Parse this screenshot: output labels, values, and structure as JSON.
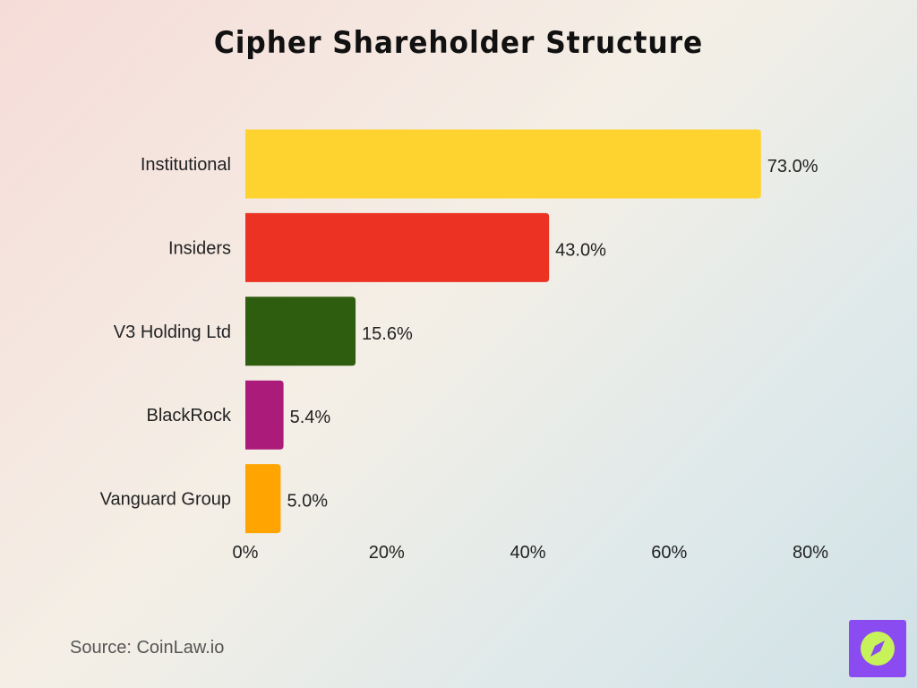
{
  "source": "Source: CoinLaw.io",
  "logo_icon": "compass-icon",
  "colors": {
    "logo_bg": "#8a4cf0",
    "logo_circle": "#c8f25a",
    "axis_text": "#222222"
  },
  "chart_data": {
    "type": "bar",
    "orientation": "horizontal",
    "title": "Cipher Shareholder Structure",
    "categories": [
      "Institutional",
      "Insiders",
      "V3 Holding Ltd",
      "BlackRock",
      "Vanguard Group"
    ],
    "values": [
      73.0,
      43.0,
      15.6,
      5.4,
      5.0
    ],
    "data_labels": [
      "73.0%",
      "43.0%",
      "15.6%",
      "5.4%",
      "5.0%"
    ],
    "colors": [
      "#fed330",
      "#eb3223",
      "#2f5d0f",
      "#ab1c7a",
      "#ffa400"
    ],
    "xlim": [
      0,
      80
    ],
    "xticks": [
      0,
      20,
      40,
      60,
      80
    ],
    "xtick_labels": [
      "0%",
      "20%",
      "40%",
      "60%",
      "80%"
    ],
    "xlabel": "",
    "ylabel": "",
    "grid": false,
    "legend": "none"
  }
}
